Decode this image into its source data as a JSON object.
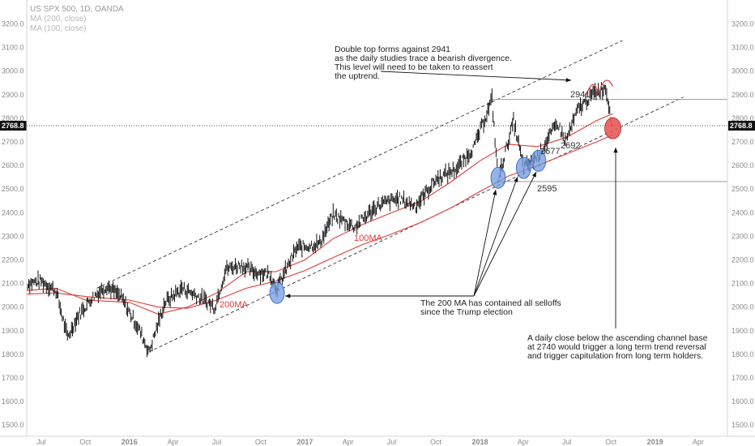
{
  "chart_data": {
    "type": "line",
    "title": "US SPX 500, 1D, OANDA",
    "legend": [
      "MA (200, close)",
      "MA (100, close)"
    ],
    "current_price": "2768.8",
    "y_ticks": [
      "3200.0",
      "3100.0",
      "3000.0",
      "2900.0",
      "2800.0",
      "2700.0",
      "2600.0",
      "2500.0",
      "2400.0",
      "2300.0",
      "2200.0",
      "2100.0",
      "2000.0",
      "1900.0",
      "1800.0",
      "1700.0",
      "1600.0",
      "1500.0"
    ],
    "x_ticks": [
      "Jul",
      "Oct",
      "2016",
      "Apr",
      "Jul",
      "Oct",
      "2017",
      "Apr",
      "Jul",
      "Oct",
      "2018",
      "Apr",
      "Jul",
      "Oct",
      "2019",
      "Apr"
    ],
    "ylim": [
      1480,
      3250
    ],
    "series": [
      {
        "name": "MA (200, close)",
        "color": "#e03a3a",
        "x": [
          "2015-06-01",
          "2015-08-01",
          "2015-10-01",
          "2016-01-01",
          "2016-03-01",
          "2016-05-01",
          "2016-07-01",
          "2016-09-01",
          "2016-11-01",
          "2017-01-01",
          "2017-03-01",
          "2017-05-01",
          "2017-07-01",
          "2017-09-01",
          "2017-11-01",
          "2018-01-01",
          "2018-03-01",
          "2018-05-01",
          "2018-07-01",
          "2018-09-01",
          "2018-10-05"
        ],
        "values": [
          2055,
          2060,
          2045,
          2030,
          2000,
          1995,
          2030,
          2080,
          2110,
          2155,
          2210,
          2265,
          2310,
          2360,
          2420,
          2490,
          2555,
          2600,
          2650,
          2700,
          2730
        ]
      },
      {
        "name": "MA (100, close)",
        "color": "#e03a3a",
        "x": [
          "2015-06-01",
          "2015-08-01",
          "2015-10-01",
          "2016-01-01",
          "2016-03-01",
          "2016-05-01",
          "2016-07-01",
          "2016-09-01",
          "2016-11-01",
          "2017-01-01",
          "2017-03-01",
          "2017-05-01",
          "2017-07-01",
          "2017-09-01",
          "2017-11-01",
          "2018-01-01",
          "2018-03-01",
          "2018-05-01",
          "2018-07-01",
          "2018-09-01",
          "2018-10-05"
        ],
        "values": [
          2070,
          2080,
          2030,
          2020,
          1970,
          2000,
          2060,
          2150,
          2150,
          2200,
          2290,
          2350,
          2400,
          2450,
          2530,
          2620,
          2690,
          2680,
          2720,
          2790,
          2820
        ]
      },
      {
        "name": "",
        "color": "#111111",
        "x": [
          "2015-06-01",
          "2015-07-01",
          "2015-08-01",
          "2015-08-25",
          "2015-09-15",
          "2015-10-15",
          "2015-11-15",
          "2015-12-15",
          "2016-01-20",
          "2016-02-11",
          "2016-03-15",
          "2016-04-20",
          "2016-05-20",
          "2016-06-27",
          "2016-07-20",
          "2016-08-20",
          "2016-09-15",
          "2016-10-20",
          "2016-11-04",
          "2016-12-15",
          "2017-02-01",
          "2017-03-01",
          "2017-04-15",
          "2017-06-01",
          "2017-07-15",
          "2017-08-20",
          "2017-10-01",
          "2017-11-15",
          "2017-12-20",
          "2018-01-26",
          "2018-02-08",
          "2018-03-12",
          "2018-04-02",
          "2018-05-01",
          "2018-06-12",
          "2018-06-28",
          "2018-07-25",
          "2018-08-29",
          "2018-09-20",
          "2018-10-05"
        ],
        "values": [
          2100,
          2110,
          2070,
          1870,
          1960,
          2040,
          2090,
          2040,
          1910,
          1810,
          2020,
          2080,
          2050,
          2000,
          2160,
          2180,
          2150,
          2140,
          2080,
          2250,
          2270,
          2390,
          2340,
          2430,
          2460,
          2430,
          2540,
          2590,
          2680,
          2880,
          2540,
          2790,
          2590,
          2640,
          2780,
          2700,
          2840,
          2910,
          2930,
          2768
        ]
      }
    ],
    "levels": [
      {
        "label": "2941",
        "value": 2941
      },
      {
        "label": "2692",
        "value": 2692
      },
      {
        "label": "2677",
        "value": 2677
      },
      {
        "label": "2595",
        "value": 2595
      }
    ],
    "ma_labels": {
      "ma200": "200MA",
      "ma100": "100MA"
    },
    "annotations": {
      "double_top": [
        "Double top forms against 2941",
        "as the daily studies trace a bearish divergence.",
        "This level will need to be taken to reassert",
        "the uptrend."
      ],
      "ma200_note": [
        "The 200 MA has contained all selloffs",
        "since the Trump election"
      ],
      "channel_note": [
        "A daily close below the ascending channel base",
        "at 2740 would trigger a long term trend reversal",
        "and trigger capitulation from long term holders."
      ]
    },
    "colors": {
      "ma": "#e03a3a",
      "price": "#111111",
      "circle_blue": "#6f9be0",
      "circle_red": "#e85050",
      "price_tag": "#111111"
    }
  }
}
